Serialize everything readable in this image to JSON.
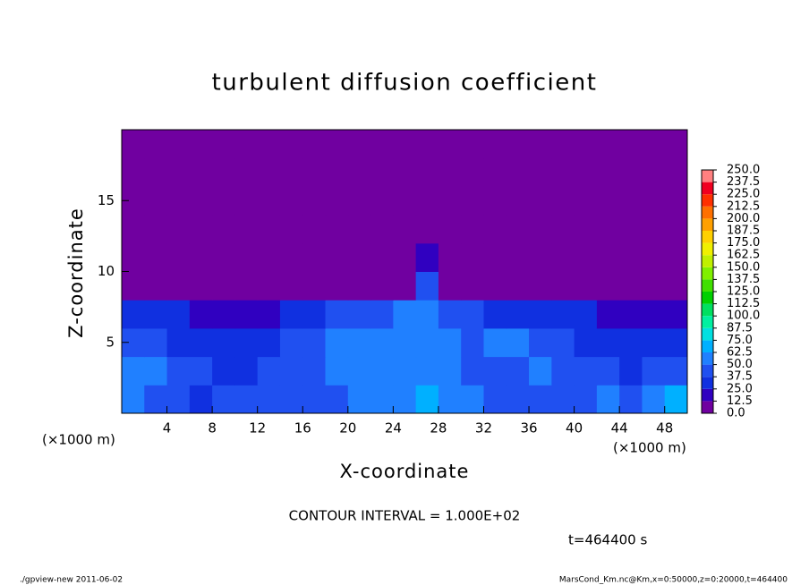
{
  "chart_data": {
    "type": "heatmap",
    "title": "turbulent diffusion coefficient",
    "xlabel": "X-coordinate",
    "ylabel": "Z-coordinate",
    "x_unit": "(×1000 m)",
    "y_unit": "(×1000 m)",
    "contour_note": "CONTOUR INTERVAL = 1.000E+02",
    "time_label": "t=464400 s",
    "footer_left": "./gpview-new  2011-06-02",
    "footer_right": "MarsCond_Km.nc@Km,x=0:50000,z=0:20000,t=464400",
    "xlim": [
      0,
      50
    ],
    "ylim": [
      0,
      20
    ],
    "xticks": [
      4,
      8,
      12,
      16,
      20,
      24,
      28,
      32,
      36,
      40,
      44,
      48
    ],
    "yticks": [
      5,
      10,
      15
    ],
    "x": [
      1,
      3,
      5,
      7,
      9,
      11,
      13,
      15,
      17,
      19,
      21,
      23,
      25,
      27,
      29,
      31,
      33,
      35,
      37,
      39,
      41,
      43,
      45,
      47,
      49
    ],
    "y": [
      1,
      3,
      5,
      7,
      9,
      11,
      13,
      15,
      17,
      19
    ],
    "values": [
      [
        50,
        45,
        40,
        35,
        40,
        38,
        40,
        45,
        40,
        45,
        55,
        55,
        60,
        65,
        55,
        50,
        45,
        40,
        45,
        40,
        45,
        50,
        45,
        55,
        70
      ],
      [
        55,
        50,
        40,
        40,
        35,
        35,
        40,
        40,
        45,
        50,
        50,
        55,
        60,
        60,
        55,
        45,
        40,
        45,
        50,
        45,
        40,
        40,
        35,
        40,
        45
      ],
      [
        45,
        40,
        35,
        30,
        25,
        30,
        35,
        40,
        45,
        50,
        55,
        55,
        60,
        55,
        50,
        45,
        50,
        50,
        45,
        40,
        35,
        30,
        30,
        25,
        30
      ],
      [
        35,
        30,
        25,
        20,
        15,
        15,
        20,
        30,
        35,
        40,
        40,
        45,
        55,
        50,
        40,
        40,
        35,
        35,
        35,
        30,
        25,
        20,
        15,
        15,
        20
      ],
      [
        0,
        0,
        0,
        0,
        0,
        0,
        0,
        0,
        0,
        0,
        0,
        0,
        0,
        45,
        0,
        0,
        0,
        0,
        0,
        0,
        0,
        0,
        0,
        0,
        0
      ],
      [
        0,
        0,
        0,
        0,
        0,
        0,
        0,
        0,
        0,
        0,
        0,
        0,
        0,
        20,
        0,
        0,
        0,
        0,
        0,
        0,
        0,
        0,
        0,
        0,
        0
      ],
      [
        0,
        0,
        0,
        0,
        0,
        0,
        0,
        0,
        0,
        0,
        0,
        0,
        0,
        0,
        0,
        0,
        0,
        0,
        0,
        0,
        0,
        0,
        0,
        0,
        0
      ],
      [
        0,
        0,
        0,
        0,
        0,
        0,
        0,
        0,
        0,
        0,
        0,
        0,
        0,
        0,
        0,
        0,
        0,
        0,
        0,
        0,
        0,
        0,
        0,
        0,
        0
      ],
      [
        0,
        0,
        0,
        0,
        0,
        0,
        0,
        0,
        0,
        0,
        0,
        0,
        0,
        0,
        0,
        0,
        0,
        0,
        0,
        0,
        0,
        0,
        0,
        0,
        0
      ],
      [
        0,
        0,
        0,
        0,
        0,
        0,
        0,
        0,
        0,
        0,
        0,
        0,
        0,
        0,
        0,
        0,
        0,
        0,
        0,
        0,
        0,
        0,
        0,
        0,
        0
      ]
    ],
    "colorbar_ticks": [
      {
        "value": 0,
        "label": "0.0"
      },
      12.5,
      {
        "value": 25,
        "label": "25.0"
      },
      37.5,
      {
        "value": 50,
        "label": "50.0"
      },
      62.5,
      {
        "value": 75,
        "label": "75.0"
      },
      87.5,
      {
        "value": 100,
        "label": "100.0"
      },
      112.5,
      {
        "value": 125,
        "label": "125.0"
      },
      137.5,
      {
        "value": 150,
        "label": "150.0"
      },
      162.5,
      {
        "value": 175,
        "label": "175.0"
      },
      187.5,
      {
        "value": 200,
        "label": "200.0"
      },
      212.5,
      {
        "value": 225,
        "label": "225.0"
      },
      237.5,
      {
        "value": 250,
        "label": "250.0"
      }
    ],
    "colors": [
      "#7000a0",
      "#3000c0",
      "#1030e0",
      "#2050f0",
      "#2080ff",
      "#00b0ff",
      "#00e0e0",
      "#00f0a0",
      "#00e060",
      "#00d000",
      "#40e000",
      "#80f000",
      "#c0f000",
      "#f0f000",
      "#ffd000",
      "#ffa000",
      "#ff7000",
      "#ff3000",
      "#f00020",
      "#ff8080"
    ]
  }
}
